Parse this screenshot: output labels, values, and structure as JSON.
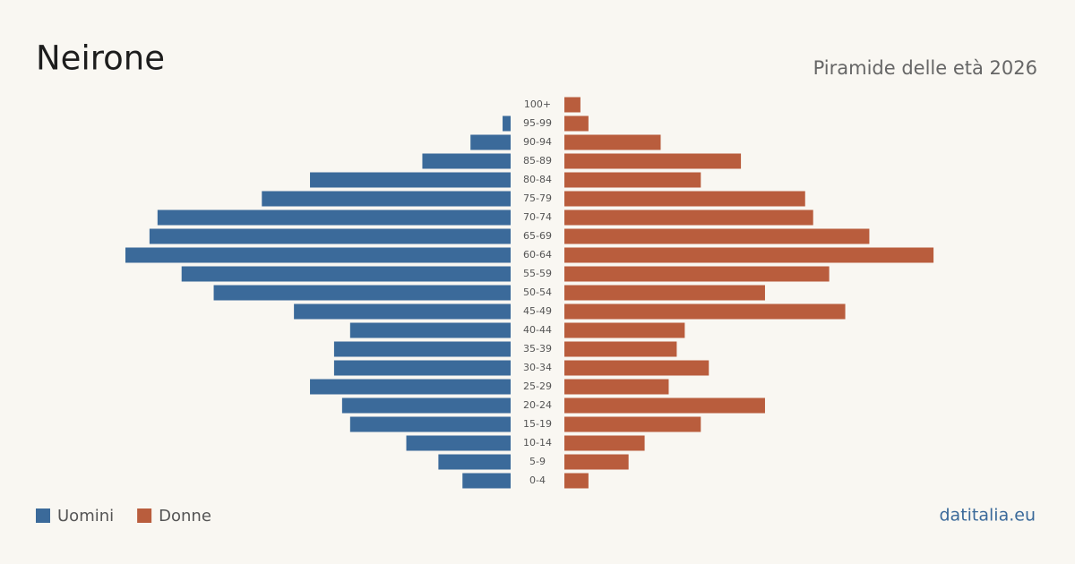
{
  "chart_data": {
    "type": "pyramid",
    "title": "Neirone",
    "subtitle": "Piramide delle età 2026",
    "source": "datitalia.eu",
    "categories": [
      "100+",
      "95-99",
      "90-94",
      "85-89",
      "80-84",
      "75-79",
      "70-74",
      "65-69",
      "60-64",
      "55-59",
      "50-54",
      "45-49",
      "40-44",
      "35-39",
      "30-34",
      "25-29",
      "20-24",
      "15-19",
      "10-14",
      "5-9",
      "0-4"
    ],
    "series": [
      {
        "name": "Uomini",
        "color": "#3b6a9a",
        "values": [
          0,
          1,
          5,
          11,
          25,
          31,
          44,
          45,
          48,
          41,
          37,
          27,
          20,
          22,
          22,
          25,
          21,
          20,
          13,
          9,
          6
        ]
      },
      {
        "name": "Donne",
        "color": "#b95d3d",
        "values": [
          2,
          3,
          12,
          22,
          17,
          30,
          31,
          38,
          46,
          33,
          25,
          35,
          15,
          14,
          18,
          13,
          25,
          17,
          10,
          8,
          3
        ]
      }
    ]
  }
}
